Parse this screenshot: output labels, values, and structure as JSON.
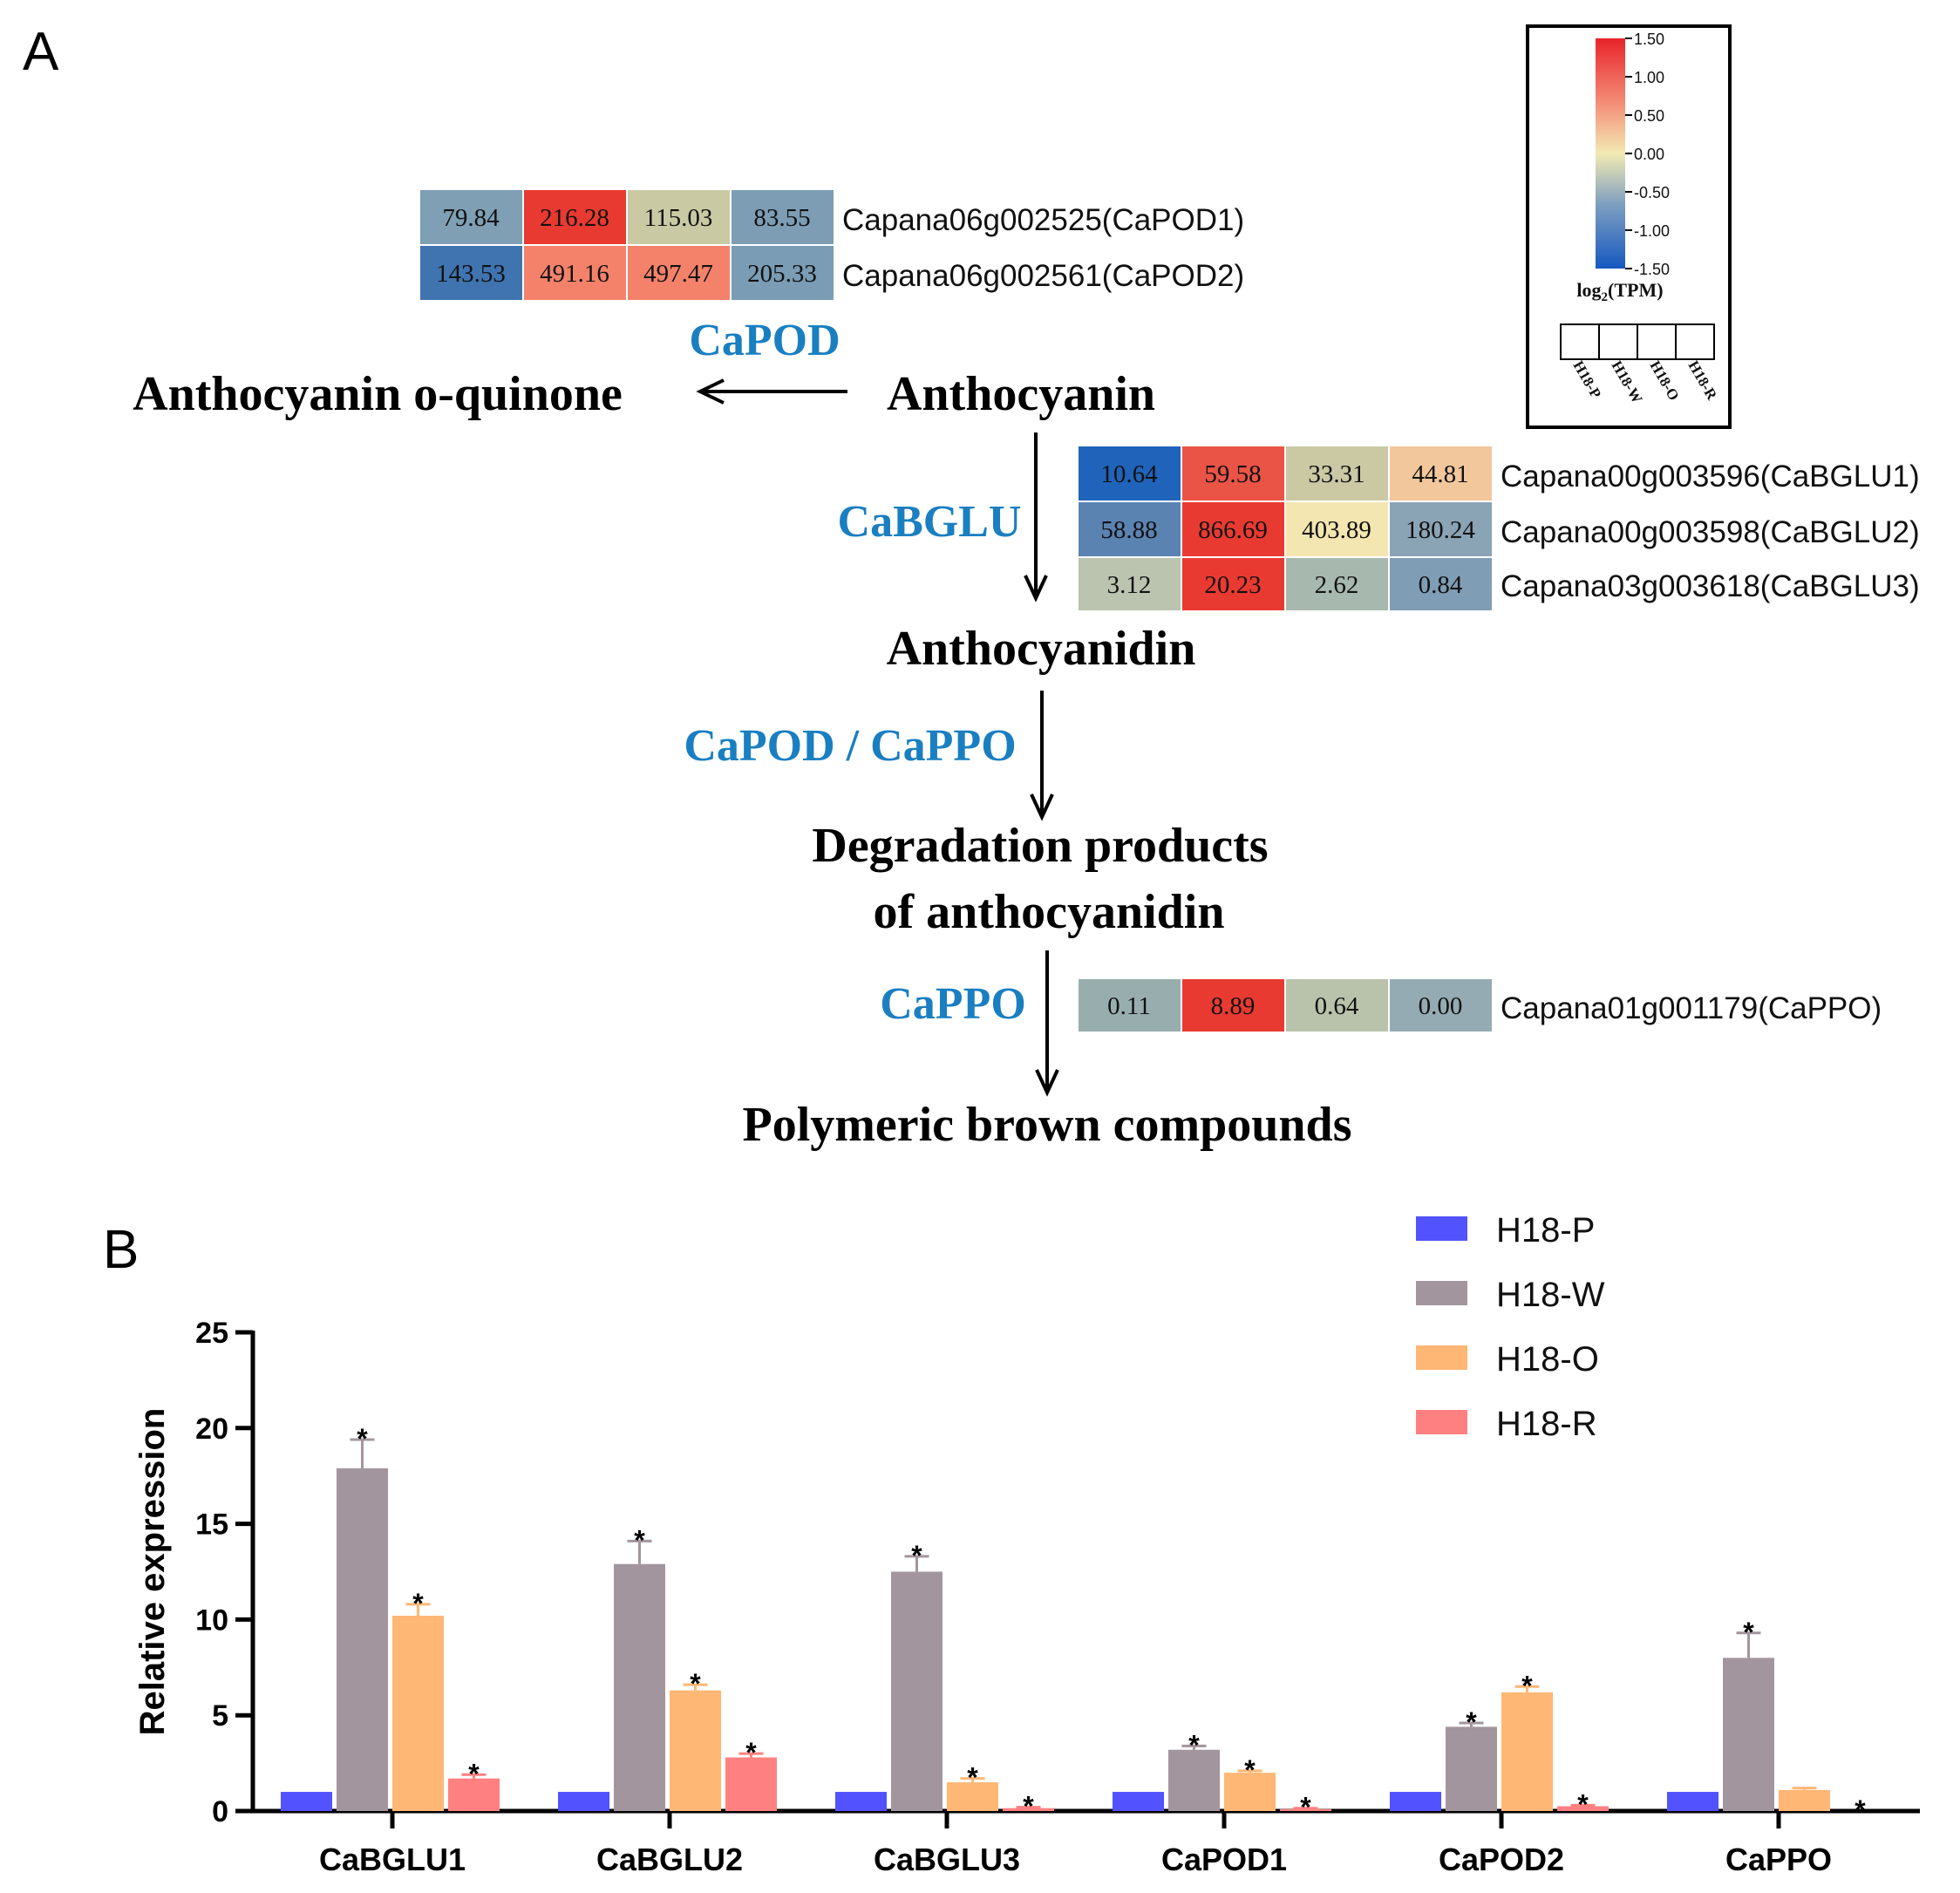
{
  "panel_a": {
    "label": "A",
    "compounds": {
      "anthocyanin": "Anthocyanin",
      "quinone": "Anthocyanin o-quinone",
      "anthocyanidin": "Anthocyanidin",
      "degradation_line1": "Degradation products",
      "degradation_line2": "of anthocyanidin",
      "polymeric": "Polymeric brown compounds"
    },
    "enzymes": {
      "pod": "CaPOD",
      "bglu": "CaBGLU",
      "pod_ppo": "CaPOD / CaPPO",
      "ppo": "CaPPO"
    },
    "heatmaps": {
      "pod": {
        "rows": [
          {
            "gene": "Capana06g002525(CaPOD1)",
            "values": [
              "79.84",
              "216.28",
              "115.03",
              "83.55"
            ],
            "colors": [
              "#7f9fb4",
              "#e93a32",
              "#c9c9a3",
              "#7d9db4"
            ]
          },
          {
            "gene": "Capana06g002561(CaPOD2)",
            "values": [
              "143.53",
              "491.16",
              "497.47",
              "205.33"
            ],
            "colors": [
              "#3f74b0",
              "#f4826a",
              "#f4826a",
              "#7a9cb4"
            ]
          }
        ]
      },
      "bglu": {
        "rows": [
          {
            "gene": "Capana00g003596(CaBGLU1)",
            "values": [
              "10.64",
              "59.58",
              "33.31",
              "44.81"
            ],
            "colors": [
              "#1f63ba",
              "#ea5446",
              "#cac9a4",
              "#f2c79b"
            ]
          },
          {
            "gene": "Capana00g003598(CaBGLU2)",
            "values": [
              "58.88",
              "866.69",
              "403.89",
              "180.24"
            ],
            "colors": [
              "#5b83b2",
              "#e93a32",
              "#f4e6b0",
              "#8aa4b5"
            ]
          },
          {
            "gene": "Capana03g003618(CaBGLU3)",
            "values": [
              "3.12",
              "20.23",
              "2.62",
              "0.84"
            ],
            "colors": [
              "#bac4ae",
              "#e93a32",
              "#a7b8ae",
              "#7f9db4"
            ]
          }
        ]
      },
      "ppo": {
        "rows": [
          {
            "gene": "Capana01g001179(CaPPO)",
            "values": [
              "0.11",
              "8.89",
              "0.64",
              "0.00"
            ],
            "colors": [
              "#98adae",
              "#e93a32",
              "#b9c3ab",
              "#94abb3"
            ]
          }
        ]
      }
    },
    "colorbar": {
      "ticks": [
        "1.50",
        "1.00",
        "0.50",
        "0.00",
        "-0.50",
        "-1.00",
        "-1.50"
      ],
      "title_prefix": "log",
      "title_sub": "2",
      "title_suffix": "(TPM)",
      "samples": [
        "H18-P",
        "H18-W",
        "H18-O",
        "H18-R"
      ]
    }
  },
  "panel_b": {
    "label": "B"
  },
  "chart_data": {
    "type": "bar",
    "ylabel": "Relative expression",
    "xlabel": "",
    "ylim": [
      0,
      25
    ],
    "yticks": [
      0,
      5,
      10,
      15,
      20,
      25
    ],
    "legend_position": "top-right",
    "categories": [
      "CaBGLU1",
      "CaBGLU2",
      "CaBGLU3",
      "CaPOD1",
      "CaPOD2",
      "CaPPO"
    ],
    "series": [
      {
        "name": "H18-P",
        "color": "#5252ff",
        "values": [
          1.0,
          1.0,
          1.0,
          1.0,
          1.0,
          1.0
        ],
        "errors": [
          0,
          0,
          0,
          0,
          0,
          0
        ],
        "significant": [
          false,
          false,
          false,
          false,
          false,
          false
        ]
      },
      {
        "name": "H18-W",
        "color": "#a3959d",
        "values": [
          17.9,
          12.9,
          12.5,
          3.2,
          4.4,
          8.0
        ],
        "errors": [
          1.5,
          1.2,
          0.8,
          0.2,
          0.2,
          1.3
        ],
        "significant": [
          true,
          true,
          true,
          true,
          true,
          true
        ]
      },
      {
        "name": "H18-O",
        "color": "#ffb775",
        "values": [
          10.2,
          6.3,
          1.5,
          2.0,
          6.2,
          1.1
        ],
        "errors": [
          0.6,
          0.3,
          0.2,
          0.1,
          0.3,
          0.1
        ],
        "significant": [
          true,
          true,
          true,
          true,
          true,
          false
        ]
      },
      {
        "name": "H18-R",
        "color": "#ff8080",
        "values": [
          1.7,
          2.8,
          0.15,
          0.1,
          0.25,
          0.0
        ],
        "errors": [
          0.2,
          0.2,
          0.05,
          0.05,
          0.05,
          0.0
        ],
        "significant": [
          true,
          true,
          true,
          true,
          true,
          true
        ]
      }
    ],
    "significance_marker": "*"
  }
}
